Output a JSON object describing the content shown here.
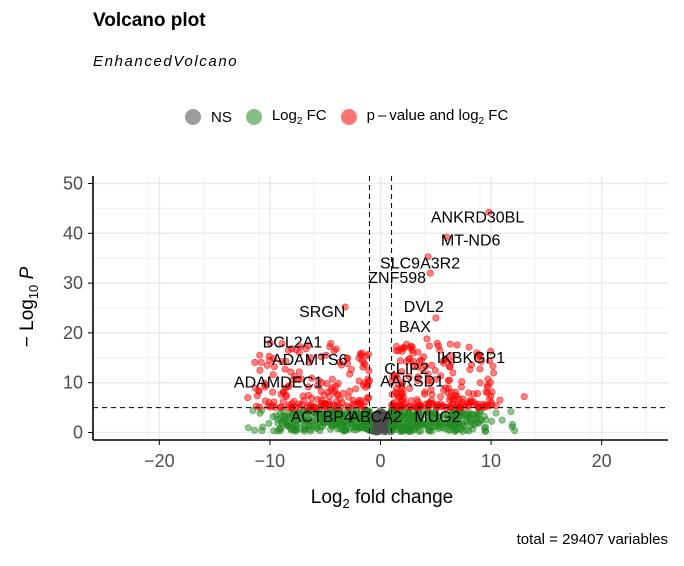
{
  "title": "Volcano plot",
  "subtitle": "EnhancedVolcano",
  "caption": "total = 29407 variables",
  "legend": [
    {
      "label": "NS",
      "color": "#4d4d4d"
    },
    {
      "label_main": "Log",
      "label_sub": "2",
      "label_tail": " FC",
      "color": "#228b22"
    },
    {
      "label_main": "p – value and log",
      "label_sub": "2",
      "label_tail": " FC",
      "color": "#ff0000"
    }
  ],
  "chart_data": {
    "type": "scatter",
    "xlabel": {
      "main": "Log",
      "sub": "2",
      "tail": " fold change"
    },
    "ylabel": {
      "main": "− Log",
      "sub": "10",
      "tail": " P"
    },
    "xlim": [
      -26,
      26
    ],
    "ylim": [
      -1.5,
      51.5
    ],
    "x_ticks": [
      -20,
      -10,
      0,
      10,
      20
    ],
    "y_ticks": [
      0,
      10,
      20,
      30,
      40,
      50
    ],
    "fc_cutoff": 1,
    "p_cutoff": 5,
    "grid": true,
    "colors": {
      "ns": "#4d4d4d",
      "fc": "#228b22",
      "sig": "#ff0000"
    },
    "labels": [
      {
        "gene": "ANKRD30BL",
        "x": 9.8,
        "y": 44.2
      },
      {
        "gene": "MT-ND6",
        "x": 6.0,
        "y": 39.2
      },
      {
        "gene": "SLC9A3R2",
        "x": 4.3,
        "y": 35.3
      },
      {
        "gene": "ZNF598",
        "x": 4.5,
        "y": 32.0
      },
      {
        "gene": "SRGN",
        "x": -3.2,
        "y": 25.2
      },
      {
        "gene": "DVL2",
        "x": 5.0,
        "y": 23.0
      },
      {
        "gene": "BAX",
        "x": 4.2,
        "y": 18.8
      },
      {
        "gene": "BCL2A1",
        "x": -6.5,
        "y": 17.5
      },
      {
        "gene": "IKBKGP1",
        "x": 8.7,
        "y": 16.0
      },
      {
        "gene": "CLIP2",
        "x": 2.6,
        "y": 14.8
      },
      {
        "gene": "ADAMTS6",
        "x": -1.5,
        "y": 14.0
      },
      {
        "gene": "AARSD1",
        "x": 3.4,
        "y": 11.2
      },
      {
        "gene": "ADAMDEC1",
        "x": -5.3,
        "y": 10.0
      },
      {
        "gene": "ACTBP4",
        "x": -6.5,
        "y": 5.5
      },
      {
        "gene": "ABCA2",
        "x": 1.7,
        "y": 5.5
      },
      {
        "gene": "MUG2",
        "x": 7.4,
        "y": 5.5
      }
    ]
  }
}
